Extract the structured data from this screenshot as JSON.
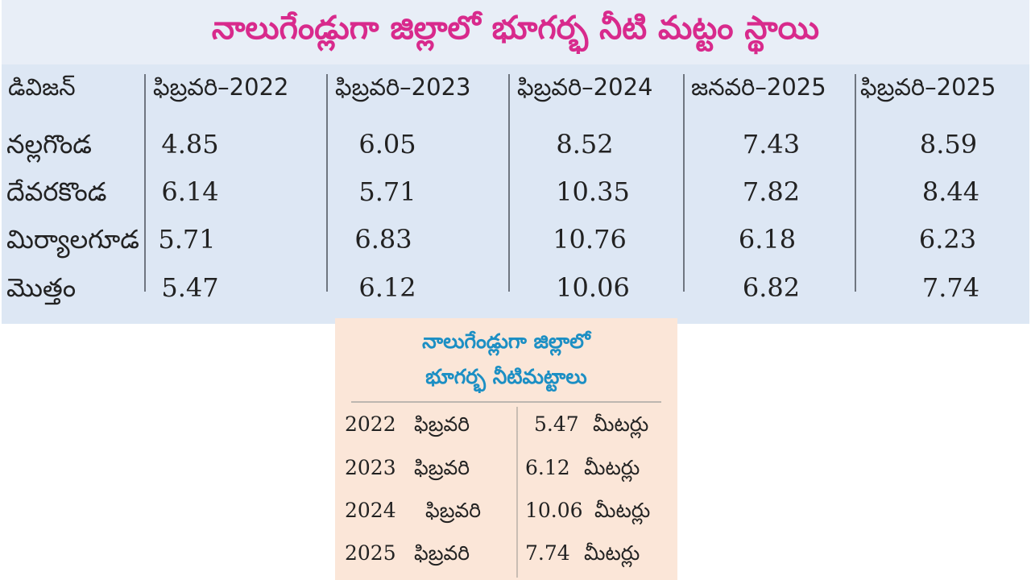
{
  "main_table": {
    "title": "నాలుగేండ్లుగా జిల్లాలో భూగర్భ నీటి మట్టం స్థాయి",
    "headers": [
      "డివిజన్",
      "ఫిబ్రవరి–2022",
      "ఫిబ్రవరి–2023",
      "ఫిబ్రవరి–2024",
      "జనవరి–2025",
      "ఫిబ్రవరి–2025"
    ],
    "rows": [
      {
        "division": "నల్లగొండ",
        "values": [
          "4.85",
          "6.05",
          "8.52",
          "7.43",
          "8.59"
        ]
      },
      {
        "division": "దేవరకొండ",
        "values": [
          "6.14",
          "5.71",
          "10.35",
          "7.82",
          "8.44"
        ]
      },
      {
        "division": "మిర్యాలగూడ",
        "values": [
          "5.71",
          "6.83",
          "10.76",
          "6.18",
          "6.23"
        ]
      },
      {
        "division": "మొత్తం",
        "values": [
          "5.47",
          "6.12",
          "10.06",
          "6.82",
          "7.74"
        ]
      }
    ]
  },
  "summary": {
    "title_line1": "నాలుగేండ్లుగా జిల్లాలో",
    "title_line2": "భూగర్భ నీటిమట్టాలు",
    "rows": [
      {
        "year": "2022",
        "month": "ఫిబ్రవరి",
        "value": "5.47",
        "unit": "మీటర్లు"
      },
      {
        "year": "2023",
        "month": "ఫిబ్రవరి",
        "value": "6.12",
        "unit": "మీటర్లు"
      },
      {
        "year": "2024",
        "month": "ఫిబ్రవరి",
        "value": "10.06",
        "unit": "మీటర్లు"
      },
      {
        "year": "2025",
        "month": "ఫిబ్రవరి",
        "value": "7.74",
        "unit": "మీటర్లు"
      }
    ]
  },
  "colors": {
    "title_magenta": "#d82a8c",
    "summary_title_blue": "#1c8fc4",
    "main_bg": "#dde7f4",
    "summary_bg": "#fbe6d8"
  }
}
